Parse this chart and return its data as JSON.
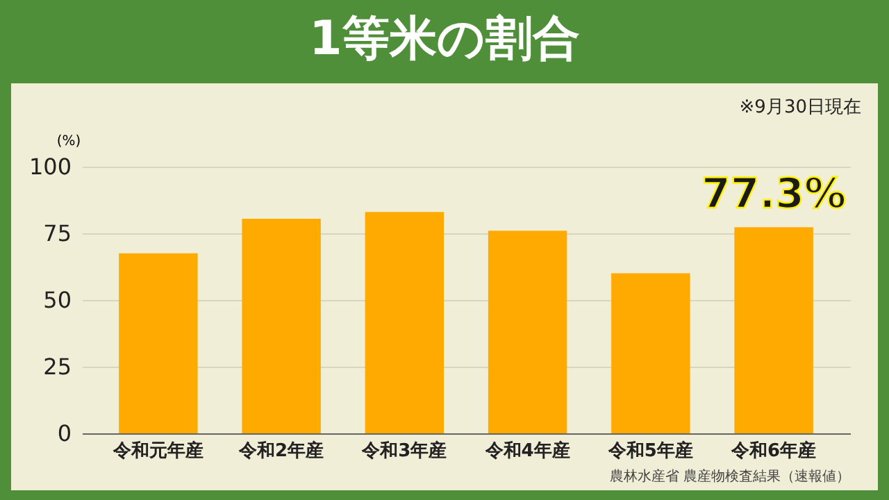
{
  "chart_data": {
    "type": "bar",
    "title": "1等米の割合",
    "ylabel": "(%)",
    "categories": [
      "令和元年産",
      "令和2年産",
      "令和3年産",
      "令和4年産",
      "令和5年産",
      "令和6年産"
    ],
    "values": [
      67.5,
      80.5,
      83,
      76,
      60,
      77.3
    ],
    "value_labels": [
      null,
      null,
      null,
      null,
      null,
      "77.3%"
    ],
    "color": "#ffaa00",
    "ylim": [
      0,
      100
    ],
    "yticks": [
      0,
      25,
      50,
      75,
      100
    ],
    "grid": "y",
    "annotations": [
      "※9月30日現在",
      "農林水産省 農産物検査結果（速報値）"
    ]
  }
}
